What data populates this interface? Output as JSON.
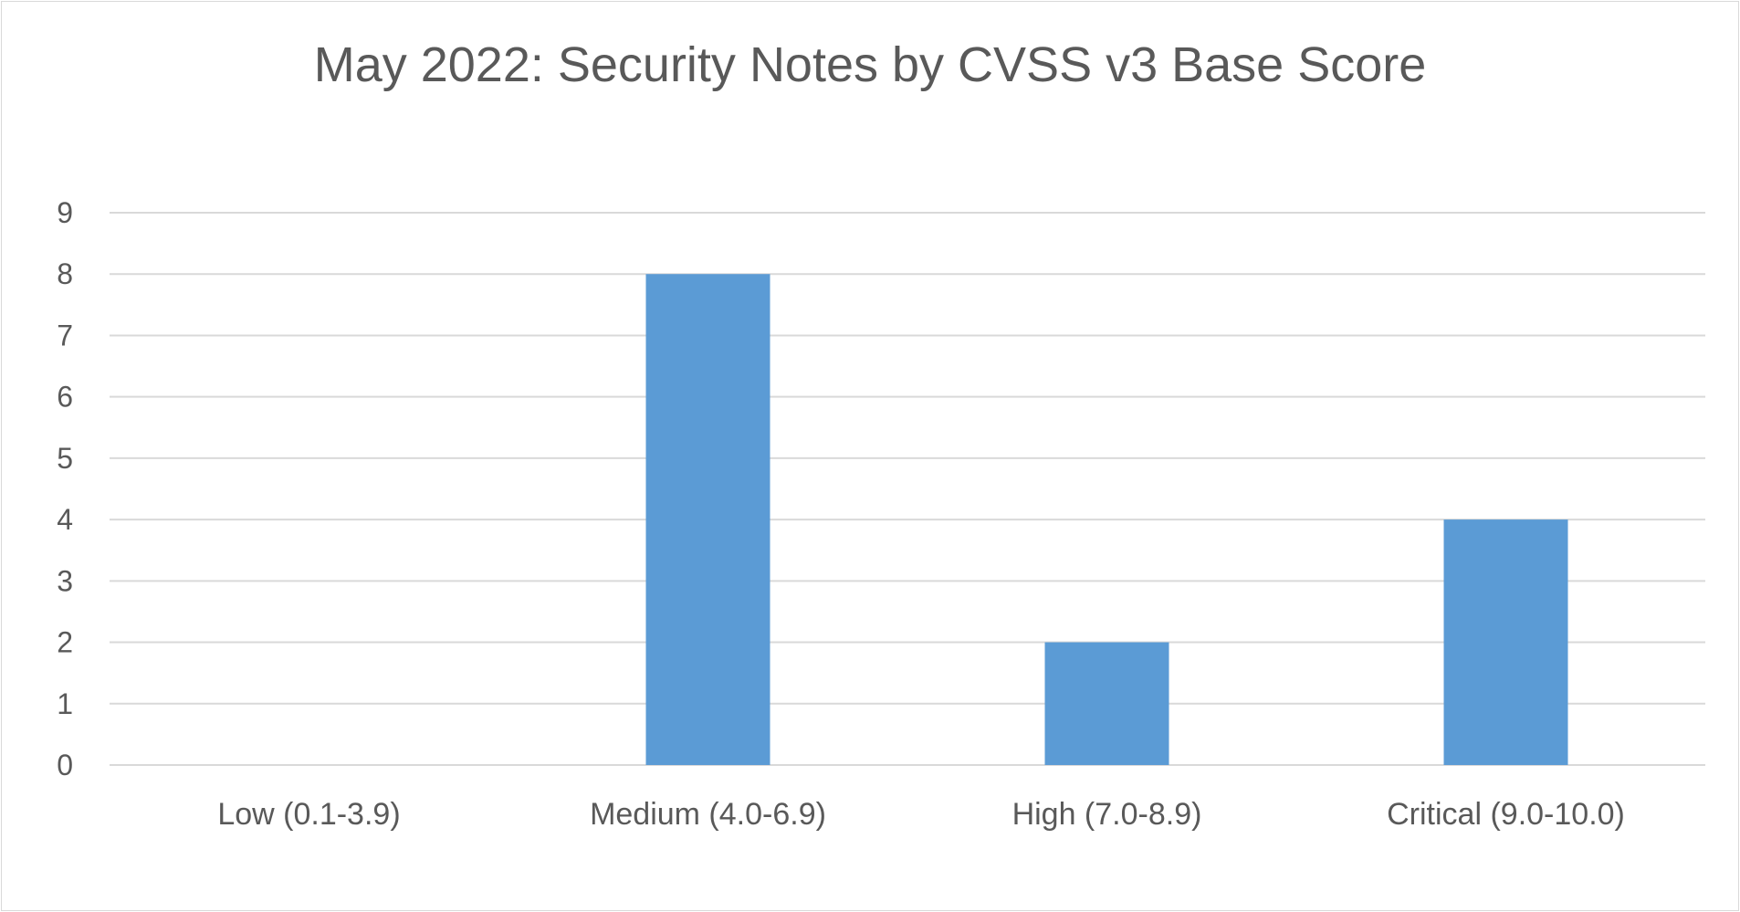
{
  "chart_data": {
    "type": "bar",
    "title": "May 2022: Security Notes by CVSS v3 Base Score",
    "xlabel": "",
    "ylabel": "",
    "categories": [
      "Low (0.1-3.9)",
      "Medium (4.0-6.9)",
      "High (7.0-8.9)",
      "Critical (9.0-10.0)"
    ],
    "values": [
      0,
      8,
      2,
      4
    ],
    "ylim": [
      0,
      9
    ],
    "yticks": [
      0,
      1,
      2,
      3,
      4,
      5,
      6,
      7,
      8,
      9
    ],
    "grid": true,
    "legend": "none",
    "colors": {
      "bar": "#5b9bd5",
      "grid": "#d9d9d9",
      "text": "#595959",
      "border": "#d9d9d9"
    }
  }
}
